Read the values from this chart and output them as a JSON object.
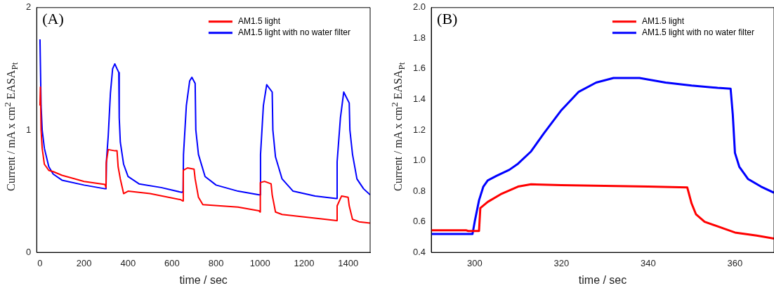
{
  "chart_data": [
    {
      "type": "line",
      "annotations": [
        "(A)"
      ],
      "xlabel": "time / sec",
      "ylabel": "Current / mA x cm$^{2}$ EASA$_{Pt}$",
      "xlim": [
        -15,
        1500
      ],
      "xticks": [
        0,
        200,
        400,
        600,
        800,
        1000,
        1200,
        1400
      ],
      "ylim": [
        0,
        2
      ],
      "yticks": [
        0,
        1,
        2
      ],
      "grid": false,
      "legend": "top right",
      "marker": "none",
      "line_style": "solid",
      "series": [
        {
          "name": "AM1.5 light",
          "color": "#ff0000",
          "x": [
            0,
            2,
            5,
            10,
            20,
            40,
            60,
            100,
            200,
            295,
            300,
            301,
            310,
            340,
            350,
            355,
            365,
            380,
            400,
            500,
            640,
            650,
            651,
            670,
            700,
            705,
            720,
            740,
            900,
            995,
            1000,
            1001,
            1020,
            1050,
            1055,
            1070,
            1100,
            1300,
            1348,
            1350,
            1370,
            1400,
            1405,
            1420,
            1450,
            1500
          ],
          "values": [
            1.2,
            1.35,
            1.0,
            0.85,
            0.72,
            0.67,
            0.66,
            0.63,
            0.58,
            0.555,
            0.53,
            0.73,
            0.84,
            0.83,
            0.83,
            0.7,
            0.6,
            0.48,
            0.5,
            0.48,
            0.43,
            0.42,
            0.67,
            0.69,
            0.68,
            0.6,
            0.45,
            0.39,
            0.37,
            0.34,
            0.33,
            0.57,
            0.58,
            0.56,
            0.47,
            0.33,
            0.31,
            0.27,
            0.26,
            0.38,
            0.46,
            0.45,
            0.38,
            0.27,
            0.25,
            0.24
          ]
        },
        {
          "name": "AM1.5 light with no water filter",
          "color": "#0000ff",
          "x": [
            0,
            5,
            10,
            20,
            40,
            60,
            100,
            200,
            295,
            300,
            302,
            310,
            320,
            330,
            340,
            350,
            358,
            360,
            365,
            380,
            400,
            450,
            550,
            645,
            650,
            652,
            665,
            680,
            690,
            705,
            708,
            720,
            750,
            800,
            900,
            995,
            1000,
            1002,
            1015,
            1030,
            1055,
            1058,
            1070,
            1100,
            1150,
            1250,
            1345,
            1348,
            1350,
            1365,
            1380,
            1405,
            1408,
            1420,
            1440,
            1470,
            1500
          ],
          "values": [
            1.74,
            1.2,
            1.0,
            0.85,
            0.7,
            0.64,
            0.59,
            0.55,
            0.52,
            0.52,
            0.75,
            0.95,
            1.3,
            1.5,
            1.54,
            1.5,
            1.47,
            1.1,
            0.9,
            0.72,
            0.62,
            0.56,
            0.53,
            0.49,
            0.5,
            0.8,
            1.2,
            1.4,
            1.43,
            1.38,
            1.0,
            0.8,
            0.62,
            0.55,
            0.5,
            0.47,
            0.47,
            0.8,
            1.2,
            1.37,
            1.31,
            1.0,
            0.78,
            0.6,
            0.5,
            0.46,
            0.44,
            0.44,
            0.74,
            1.1,
            1.31,
            1.22,
            1.0,
            0.8,
            0.6,
            0.52,
            0.47
          ]
        }
      ]
    },
    {
      "type": "line",
      "annotations": [
        "(B)"
      ],
      "xlabel": "time / sec",
      "ylabel": "Current / mA x cm$^{2}$ EASA$_{Pt}$",
      "xlim": [
        290,
        369
      ],
      "xticks": [
        300,
        320,
        340,
        360
      ],
      "ylim": [
        0.4,
        2.0
      ],
      "yticks": [
        {
          "value": 0.4,
          "label": "0.4"
        },
        0.6,
        0.8,
        {
          "value": 1.0,
          "label": "1.0"
        },
        1.2,
        1.4,
        1.6,
        1.8,
        {
          "value": 2.0,
          "label": "2.0"
        }
      ],
      "grid": false,
      "legend": "top right",
      "marker": "none",
      "line_style": "solid",
      "series": [
        {
          "name": "AM1.5 light",
          "color": "#ff0000",
          "x": [
            290,
            298,
            298.5,
            301,
            301.3,
            303,
            306,
            310,
            313,
            320,
            330,
            340,
            349,
            350,
            351,
            353,
            356,
            360,
            365,
            369
          ],
          "values": [
            0.545,
            0.545,
            0.54,
            0.54,
            0.69,
            0.73,
            0.78,
            0.83,
            0.845,
            0.84,
            0.835,
            0.83,
            0.825,
            0.72,
            0.65,
            0.6,
            0.57,
            0.53,
            0.51,
            0.49
          ]
        },
        {
          "name": "AM1.5 light with no water filter",
          "color": "#0000ff",
          "x": [
            290,
            299.5,
            300,
            301,
            302,
            303,
            305,
            308,
            310,
            313,
            316,
            320,
            324,
            328,
            332,
            338,
            344,
            350,
            356,
            359,
            359.5,
            360,
            361,
            363,
            366,
            369
          ],
          "values": [
            0.52,
            0.52,
            0.6,
            0.74,
            0.83,
            0.87,
            0.9,
            0.94,
            0.98,
            1.06,
            1.18,
            1.33,
            1.45,
            1.51,
            1.54,
            1.54,
            1.51,
            1.49,
            1.475,
            1.47,
            1.3,
            1.05,
            0.96,
            0.88,
            0.83,
            0.79
          ]
        }
      ]
    }
  ]
}
